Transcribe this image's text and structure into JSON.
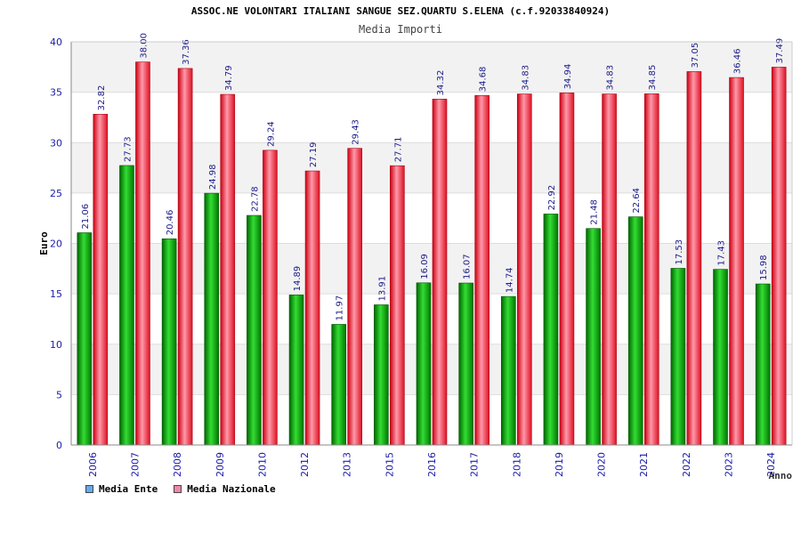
{
  "chart_data": {
    "type": "bar",
    "title": "ASSOC.NE VOLONTARI ITALIANI SANGUE SEZ.QUARTU S.ELENA (c.f.92033840924)",
    "subtitle": "Media Importi",
    "xlabel": "Anno",
    "ylabel": "Euro",
    "ylim": [
      0,
      40
    ],
    "yticks": [
      "0",
      "5",
      "10",
      "15",
      "20",
      "25",
      "30",
      "35",
      "40"
    ],
    "categories": [
      "2006",
      "2007",
      "2008",
      "2009",
      "2010",
      "2012",
      "2013",
      "2015",
      "2016",
      "2017",
      "2018",
      "2019",
      "2020",
      "2021",
      "2022",
      "2023",
      "2024"
    ],
    "series": [
      {
        "name": "Media Ente",
        "color": "#00aa00",
        "legend_color": "#66aaee",
        "values": [
          21.06,
          27.73,
          20.46,
          24.98,
          22.78,
          14.89,
          11.97,
          13.91,
          16.09,
          16.07,
          14.74,
          22.92,
          21.48,
          22.64,
          17.53,
          17.43,
          15.98
        ],
        "labels": [
          "21.06",
          "27.73",
          "20.46",
          "24.98",
          "22.78",
          "14.89",
          "11.97",
          "13.91",
          "16.09",
          "16.07",
          "14.74",
          "22.92",
          "21.48",
          "22.64",
          "17.53",
          "17.43",
          "15.98"
        ]
      },
      {
        "name": "Media Nazionale",
        "color": "#ee2233",
        "legend_color": "#ee88aa",
        "values": [
          32.82,
          38.0,
          37.36,
          34.79,
          29.24,
          27.19,
          29.43,
          27.71,
          34.32,
          34.68,
          34.83,
          34.94,
          34.83,
          34.85,
          37.05,
          36.46,
          37.49
        ],
        "labels": [
          "32.82",
          "38.00",
          "37.36",
          "34.79",
          "29.24",
          "27.19",
          "29.43",
          "27.71",
          "34.32",
          "34.68",
          "34.83",
          "34.94",
          "34.83",
          "34.85",
          "37.05",
          "36.46",
          "37.49"
        ]
      }
    ],
    "grid": true,
    "legend_position": "bottom-left"
  }
}
